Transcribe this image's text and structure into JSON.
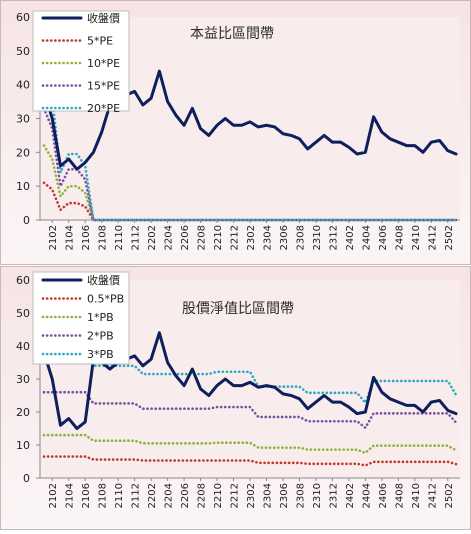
{
  "chart_data": [
    {
      "type": "line",
      "title": "本益比區間帶",
      "ylim": [
        0,
        60
      ],
      "yticks": [
        0,
        10,
        20,
        30,
        40,
        50,
        60
      ],
      "grid": false,
      "legend_position": "top-left",
      "x": [
        "2101",
        "2102",
        "2103",
        "2104",
        "2105",
        "2106",
        "2107",
        "2108",
        "2109",
        "2110",
        "2111",
        "2112",
        "2201",
        "2202",
        "2203",
        "2204",
        "2205",
        "2206",
        "2207",
        "2208",
        "2209",
        "2210",
        "2211",
        "2212",
        "2301",
        "2302",
        "2303",
        "2304",
        "2305",
        "2306",
        "2307",
        "2308",
        "2309",
        "2310",
        "2311",
        "2312",
        "2401",
        "2402",
        "2403",
        "2404",
        "2405",
        "2406",
        "2407",
        "2408",
        "2409",
        "2410",
        "2411",
        "2412",
        "2501",
        "2502",
        "2503"
      ],
      "xticklabels": [
        "2102",
        "2104",
        "2106",
        "2108",
        "2110",
        "2112",
        "2202",
        "2204",
        "2206",
        "2208",
        "2210",
        "2212",
        "2302",
        "2304",
        "2306",
        "2308",
        "2310",
        "2312",
        "2402",
        "2404",
        "2406",
        "2408",
        "2410",
        "2412",
        "2502"
      ],
      "series": [
        {
          "name": "收盤價",
          "color": "#0d1f5c",
          "style": "solid",
          "values": [
            38,
            30,
            16,
            18,
            15,
            17,
            20,
            26,
            34,
            36,
            37,
            38,
            34,
            36,
            44,
            35,
            31,
            28,
            33,
            27,
            25,
            28,
            30,
            28,
            28,
            29,
            27.5,
            28,
            27.5,
            25.5,
            25,
            24,
            21,
            23,
            25,
            23,
            23,
            21.5,
            19.5,
            20,
            30.5,
            26,
            24,
            23,
            22,
            22,
            20,
            23,
            23.5,
            20.5,
            19.5
          ]
        },
        {
          "name": "5*PE",
          "color": "#c0392b",
          "style": "dotted",
          "values": [
            11,
            9,
            3,
            5,
            5,
            4,
            0,
            0,
            0,
            0,
            0,
            0,
            0,
            0,
            0,
            0,
            0,
            0,
            0,
            0,
            0,
            0,
            0,
            0,
            0,
            0,
            0,
            0,
            0,
            0,
            0,
            0,
            0,
            0,
            0,
            0,
            0,
            0,
            0,
            0,
            0,
            0,
            0,
            0,
            0,
            0,
            0,
            0,
            0,
            0,
            0
          ]
        },
        {
          "name": "10*PE",
          "color": "#8cb33a",
          "style": "dotted",
          "values": [
            22,
            18,
            7,
            10,
            10,
            8,
            0,
            0,
            0,
            0,
            0,
            0,
            0,
            0,
            0,
            0,
            0,
            0,
            0,
            0,
            0,
            0,
            0,
            0,
            0,
            0,
            0,
            0,
            0,
            0,
            0,
            0,
            0,
            0,
            0,
            0,
            0,
            0,
            0,
            0,
            0,
            0,
            0,
            0,
            0,
            0,
            0,
            0,
            0,
            0,
            0
          ]
        },
        {
          "name": "15*PE",
          "color": "#7a4fa0",
          "style": "dotted",
          "values": [
            33,
            27,
            10,
            15,
            15,
            12,
            0,
            0,
            0,
            0,
            0,
            0,
            0,
            0,
            0,
            0,
            0,
            0,
            0,
            0,
            0,
            0,
            0,
            0,
            0,
            0,
            0,
            0,
            0,
            0,
            0,
            0,
            0,
            0,
            0,
            0,
            0,
            0,
            0,
            0,
            0,
            0,
            0,
            0,
            0,
            0,
            0,
            0,
            0,
            0,
            0
          ]
        },
        {
          "name": "20*PE",
          "color": "#2aa8c4",
          "style": "dotted",
          "values": [
            44,
            36,
            14,
            19.5,
            19.5,
            16,
            0,
            0,
            0,
            0,
            0,
            0,
            0,
            0,
            0,
            0,
            0,
            0,
            0,
            0,
            0,
            0,
            0,
            0,
            0,
            0,
            0,
            0,
            0,
            0,
            0,
            0,
            0,
            0,
            0,
            0,
            0,
            0,
            0,
            0,
            0,
            0,
            0,
            0,
            0,
            0,
            0,
            0,
            0,
            0,
            0
          ]
        }
      ]
    },
    {
      "type": "line",
      "title": "股價淨值比區間帶",
      "ylim": [
        0,
        60
      ],
      "yticks": [
        0,
        10,
        20,
        30,
        40,
        50,
        60
      ],
      "grid": false,
      "legend_position": "top-left",
      "x": [
        "2101",
        "2102",
        "2103",
        "2104",
        "2105",
        "2106",
        "2107",
        "2108",
        "2109",
        "2110",
        "2111",
        "2112",
        "2201",
        "2202",
        "2203",
        "2204",
        "2205",
        "2206",
        "2207",
        "2208",
        "2209",
        "2210",
        "2211",
        "2212",
        "2301",
        "2302",
        "2303",
        "2304",
        "2305",
        "2306",
        "2307",
        "2308",
        "2309",
        "2310",
        "2311",
        "2312",
        "2401",
        "2402",
        "2403",
        "2404",
        "2405",
        "2406",
        "2407",
        "2408",
        "2409",
        "2410",
        "2411",
        "2412",
        "2501",
        "2502",
        "2503"
      ],
      "xticklabels": [
        "2102",
        "2104",
        "2106",
        "2108",
        "2110",
        "2112",
        "2202",
        "2204",
        "2206",
        "2208",
        "2210",
        "2212",
        "2302",
        "2304",
        "2306",
        "2308",
        "2310",
        "2312",
        "2402",
        "2404",
        "2406",
        "2408",
        "2410",
        "2412",
        "2502"
      ],
      "series": [
        {
          "name": "收盤價",
          "color": "#0d1f5c",
          "style": "solid",
          "values": [
            38,
            30,
            16,
            18,
            15,
            17,
            36,
            35,
            33,
            35,
            36,
            37,
            34,
            36,
            44,
            35,
            31,
            28,
            33,
            27,
            25,
            28,
            30,
            28,
            28,
            29,
            27.5,
            28,
            27.5,
            25.5,
            25,
            24,
            21,
            23,
            25,
            23,
            23,
            21.5,
            19.5,
            20,
            30.5,
            26,
            24,
            23,
            22,
            22,
            20,
            23,
            23.5,
            20.5,
            19.5
          ]
        },
        {
          "name": "0.5*PB",
          "color": "#c0392b",
          "style": "dotted",
          "values": [
            6.5,
            6.5,
            6.5,
            6.5,
            6.5,
            6.5,
            5.6,
            5.6,
            5.6,
            5.6,
            5.6,
            5.6,
            5.3,
            5.3,
            5.3,
            5.3,
            5.3,
            5.3,
            5.3,
            5.3,
            5.3,
            5.3,
            5.3,
            5.3,
            5.3,
            5.3,
            4.6,
            4.6,
            4.6,
            4.6,
            4.6,
            4.6,
            4.3,
            4.3,
            4.3,
            4.3,
            4.3,
            4.3,
            4.3,
            3.8,
            4.9,
            4.9,
            4.9,
            4.9,
            4.9,
            4.9,
            4.9,
            4.9,
            4.9,
            4.9,
            4.2
          ]
        },
        {
          "name": "1*PB",
          "color": "#8cb33a",
          "style": "dotted",
          "values": [
            13,
            13,
            13,
            13,
            13,
            13,
            11.3,
            11.3,
            11.3,
            11.3,
            11.3,
            11.3,
            10.5,
            10.5,
            10.5,
            10.5,
            10.5,
            10.5,
            10.5,
            10.5,
            10.5,
            10.7,
            10.7,
            10.7,
            10.7,
            10.7,
            9.2,
            9.2,
            9.2,
            9.2,
            9.2,
            9.2,
            8.6,
            8.6,
            8.6,
            8.6,
            8.6,
            8.6,
            8.6,
            7.6,
            9.8,
            9.8,
            9.8,
            9.8,
            9.8,
            9.8,
            9.8,
            9.8,
            9.8,
            9.8,
            8.4
          ]
        },
        {
          "name": "2*PB",
          "color": "#7a4fa0",
          "style": "dotted",
          "values": [
            26,
            26,
            26,
            26,
            26,
            26,
            22.6,
            22.6,
            22.6,
            22.6,
            22.6,
            22.6,
            21,
            21,
            21,
            21,
            21,
            21,
            21,
            21,
            21,
            21.5,
            21.5,
            21.5,
            21.5,
            21.5,
            18.5,
            18.5,
            18.5,
            18.5,
            18.5,
            18.5,
            17.2,
            17.2,
            17.2,
            17.2,
            17.2,
            17.2,
            17.2,
            15.2,
            19.6,
            19.6,
            19.6,
            19.6,
            19.6,
            19.6,
            19.6,
            19.6,
            19.6,
            19.6,
            16.8
          ]
        },
        {
          "name": "3*PB",
          "color": "#2aa8c4",
          "style": "dotted",
          "values": [
            39,
            39,
            39,
            39,
            39,
            39,
            34,
            34,
            34,
            34,
            34,
            34,
            31.5,
            31.5,
            31.5,
            31.5,
            31.5,
            31.5,
            31.5,
            31.5,
            31.5,
            32.2,
            32.2,
            32.2,
            32.2,
            32.2,
            27.7,
            27.7,
            27.7,
            27.7,
            27.7,
            27.7,
            25.8,
            25.8,
            25.8,
            25.8,
            25.8,
            25.8,
            25.8,
            22.8,
            29.4,
            29.4,
            29.4,
            29.4,
            29.4,
            29.4,
            29.4,
            29.4,
            29.4,
            29.4,
            25.2
          ]
        }
      ]
    }
  ]
}
